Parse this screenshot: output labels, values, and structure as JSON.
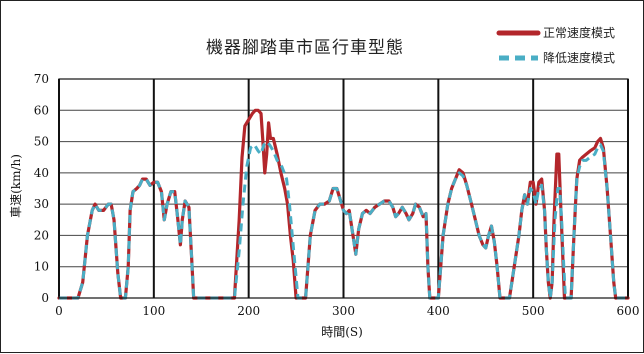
{
  "chart_data": {
    "type": "line",
    "title": "機器腳踏車市區行車型態",
    "xlabel": "時間(S)",
    "ylabel": "車速(km/h)",
    "xlim": [
      0,
      600
    ],
    "ylim": [
      0,
      70
    ],
    "x_ticks": [
      0,
      100,
      200,
      300,
      400,
      500,
      600
    ],
    "y_ticks": [
      0,
      10,
      20,
      30,
      40,
      50,
      60,
      70
    ],
    "grid": true,
    "legend_position": "top-right",
    "series": [
      {
        "name": "正常速度模式",
        "color": "#b3262b",
        "style": "solid",
        "points": [
          [
            0,
            0
          ],
          [
            20,
            0
          ],
          [
            25,
            5
          ],
          [
            30,
            20
          ],
          [
            35,
            28
          ],
          [
            38,
            30
          ],
          [
            42,
            28
          ],
          [
            47,
            28
          ],
          [
            52,
            30
          ],
          [
            55,
            30
          ],
          [
            58,
            25
          ],
          [
            62,
            8
          ],
          [
            65,
            0
          ],
          [
            70,
            0
          ],
          [
            73,
            10
          ],
          [
            75,
            28
          ],
          [
            78,
            34
          ],
          [
            82,
            35
          ],
          [
            85,
            36
          ],
          [
            88,
            38
          ],
          [
            92,
            38
          ],
          [
            96,
            36
          ],
          [
            100,
            37
          ],
          [
            104,
            37
          ],
          [
            108,
            34
          ],
          [
            111,
            25
          ],
          [
            114,
            30
          ],
          [
            118,
            34
          ],
          [
            122,
            34
          ],
          [
            125,
            26
          ],
          [
            128,
            17
          ],
          [
            130,
            25
          ],
          [
            133,
            31
          ],
          [
            137,
            29
          ],
          [
            140,
            12
          ],
          [
            142,
            0
          ],
          [
            185,
            0
          ],
          [
            190,
            25
          ],
          [
            193,
            45
          ],
          [
            196,
            55
          ],
          [
            200,
            57
          ],
          [
            204,
            59
          ],
          [
            207,
            60
          ],
          [
            210,
            60
          ],
          [
            213,
            59
          ],
          [
            215,
            50
          ],
          [
            217,
            40
          ],
          [
            219,
            46
          ],
          [
            221,
            56
          ],
          [
            223,
            51
          ],
          [
            226,
            51
          ],
          [
            230,
            46
          ],
          [
            234,
            40
          ],
          [
            238,
            35
          ],
          [
            241,
            30
          ],
          [
            244,
            20
          ],
          [
            247,
            12
          ],
          [
            250,
            0
          ],
          [
            260,
            0
          ],
          [
            265,
            20
          ],
          [
            270,
            28
          ],
          [
            275,
            30
          ],
          [
            280,
            30
          ],
          [
            285,
            31
          ],
          [
            289,
            35
          ],
          [
            293,
            35
          ],
          [
            296,
            32
          ],
          [
            300,
            28
          ],
          [
            303,
            27
          ],
          [
            306,
            28
          ],
          [
            310,
            20
          ],
          [
            313,
            14
          ],
          [
            316,
            22
          ],
          [
            320,
            27
          ],
          [
            324,
            28
          ],
          [
            328,
            27
          ],
          [
            333,
            29
          ],
          [
            338,
            30
          ],
          [
            343,
            31
          ],
          [
            348,
            31
          ],
          [
            352,
            29
          ],
          [
            355,
            26
          ],
          [
            358,
            27
          ],
          [
            362,
            29
          ],
          [
            366,
            27
          ],
          [
            369,
            25
          ],
          [
            373,
            27
          ],
          [
            376,
            30
          ],
          [
            380,
            29
          ],
          [
            384,
            26
          ],
          [
            387,
            27
          ],
          [
            389,
            10
          ],
          [
            391,
            0
          ],
          [
            400,
            0
          ],
          [
            405,
            20
          ],
          [
            410,
            30
          ],
          [
            414,
            35
          ],
          [
            418,
            38
          ],
          [
            422,
            41
          ],
          [
            426,
            40
          ],
          [
            430,
            36
          ],
          [
            435,
            30
          ],
          [
            439,
            25
          ],
          [
            443,
            20
          ],
          [
            447,
            17
          ],
          [
            450,
            16
          ],
          [
            453,
            20
          ],
          [
            456,
            23
          ],
          [
            459,
            18
          ],
          [
            462,
            10
          ],
          [
            465,
            0
          ],
          [
            475,
            0
          ],
          [
            480,
            10
          ],
          [
            485,
            20
          ],
          [
            488,
            28
          ],
          [
            491,
            33
          ],
          [
            494,
            30
          ],
          [
            497,
            37
          ],
          [
            500,
            37
          ],
          [
            503,
            30
          ],
          [
            506,
            37
          ],
          [
            509,
            38
          ],
          [
            512,
            28
          ],
          [
            514,
            15
          ],
          [
            516,
            5
          ],
          [
            518,
            0
          ],
          [
            520,
            5
          ],
          [
            522,
            25
          ],
          [
            525,
            46
          ],
          [
            527,
            46
          ],
          [
            529,
            30
          ],
          [
            531,
            15
          ],
          [
            533,
            0
          ],
          [
            540,
            0
          ],
          [
            543,
            20
          ],
          [
            546,
            38
          ],
          [
            549,
            44
          ],
          [
            552,
            45
          ],
          [
            556,
            46
          ],
          [
            560,
            47
          ],
          [
            565,
            48
          ],
          [
            568,
            50
          ],
          [
            571,
            51
          ],
          [
            574,
            48
          ],
          [
            578,
            35
          ],
          [
            582,
            18
          ],
          [
            585,
            5
          ],
          [
            587,
            0
          ],
          [
            600,
            0
          ]
        ]
      },
      {
        "name": "降低速度模式",
        "color": "#4aaec5",
        "style": "dashed",
        "points": [
          [
            0,
            0
          ],
          [
            20,
            0
          ],
          [
            25,
            5
          ],
          [
            30,
            20
          ],
          [
            35,
            28
          ],
          [
            38,
            30
          ],
          [
            42,
            28
          ],
          [
            47,
            28
          ],
          [
            52,
            30
          ],
          [
            55,
            30
          ],
          [
            58,
            25
          ],
          [
            62,
            8
          ],
          [
            65,
            0
          ],
          [
            70,
            0
          ],
          [
            73,
            10
          ],
          [
            75,
            28
          ],
          [
            78,
            34
          ],
          [
            82,
            35
          ],
          [
            85,
            36
          ],
          [
            88,
            38
          ],
          [
            92,
            38
          ],
          [
            96,
            36
          ],
          [
            100,
            37
          ],
          [
            104,
            37
          ],
          [
            108,
            34
          ],
          [
            111,
            25
          ],
          [
            114,
            30
          ],
          [
            118,
            34
          ],
          [
            122,
            34
          ],
          [
            125,
            26
          ],
          [
            128,
            17
          ],
          [
            130,
            25
          ],
          [
            133,
            31
          ],
          [
            137,
            29
          ],
          [
            140,
            12
          ],
          [
            142,
            0
          ],
          [
            185,
            0
          ],
          [
            190,
            15
          ],
          [
            194,
            30
          ],
          [
            198,
            42
          ],
          [
            202,
            48
          ],
          [
            206,
            49
          ],
          [
            210,
            47
          ],
          [
            213,
            46
          ],
          [
            216,
            49
          ],
          [
            219,
            50
          ],
          [
            222,
            49
          ],
          [
            226,
            47
          ],
          [
            230,
            44
          ],
          [
            235,
            42
          ],
          [
            240,
            38
          ],
          [
            243,
            30
          ],
          [
            246,
            20
          ],
          [
            249,
            10
          ],
          [
            252,
            0
          ],
          [
            260,
            0
          ],
          [
            265,
            20
          ],
          [
            270,
            28
          ],
          [
            275,
            30
          ],
          [
            280,
            30
          ],
          [
            285,
            31
          ],
          [
            289,
            35
          ],
          [
            293,
            35
          ],
          [
            296,
            32
          ],
          [
            300,
            28
          ],
          [
            303,
            27
          ],
          [
            306,
            28
          ],
          [
            310,
            20
          ],
          [
            313,
            14
          ],
          [
            316,
            22
          ],
          [
            320,
            27
          ],
          [
            324,
            28
          ],
          [
            328,
            27
          ],
          [
            333,
            29
          ],
          [
            338,
            30
          ],
          [
            343,
            31
          ],
          [
            348,
            31
          ],
          [
            352,
            29
          ],
          [
            355,
            26
          ],
          [
            358,
            27
          ],
          [
            362,
            29
          ],
          [
            366,
            27
          ],
          [
            369,
            25
          ],
          [
            373,
            27
          ],
          [
            376,
            30
          ],
          [
            380,
            29
          ],
          [
            384,
            26
          ],
          [
            387,
            27
          ],
          [
            389,
            10
          ],
          [
            391,
            0
          ],
          [
            400,
            0
          ],
          [
            405,
            20
          ],
          [
            410,
            30
          ],
          [
            414,
            35
          ],
          [
            418,
            38
          ],
          [
            422,
            40
          ],
          [
            426,
            39
          ],
          [
            430,
            36
          ],
          [
            435,
            30
          ],
          [
            439,
            25
          ],
          [
            443,
            20
          ],
          [
            447,
            17
          ],
          [
            450,
            16
          ],
          [
            453,
            20
          ],
          [
            456,
            23
          ],
          [
            459,
            18
          ],
          [
            462,
            10
          ],
          [
            465,
            0
          ],
          [
            475,
            0
          ],
          [
            480,
            10
          ],
          [
            485,
            20
          ],
          [
            488,
            28
          ],
          [
            491,
            33
          ],
          [
            494,
            30
          ],
          [
            497,
            35
          ],
          [
            500,
            34
          ],
          [
            503,
            30
          ],
          [
            506,
            35
          ],
          [
            509,
            36
          ],
          [
            512,
            28
          ],
          [
            514,
            15
          ],
          [
            516,
            5
          ],
          [
            518,
            0
          ],
          [
            520,
            5
          ],
          [
            523,
            25
          ],
          [
            526,
            35
          ],
          [
            528,
            35
          ],
          [
            530,
            25
          ],
          [
            532,
            12
          ],
          [
            534,
            0
          ],
          [
            540,
            0
          ],
          [
            543,
            20
          ],
          [
            546,
            38
          ],
          [
            549,
            42
          ],
          [
            552,
            44
          ],
          [
            556,
            44
          ],
          [
            560,
            45
          ],
          [
            565,
            46
          ],
          [
            568,
            48
          ],
          [
            571,
            49
          ],
          [
            574,
            47
          ],
          [
            578,
            35
          ],
          [
            582,
            18
          ],
          [
            585,
            5
          ],
          [
            587,
            0
          ],
          [
            600,
            0
          ]
        ]
      }
    ]
  }
}
